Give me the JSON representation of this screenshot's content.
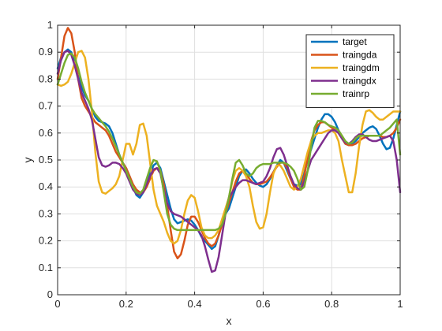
{
  "chart_data": {
    "type": "line",
    "title": "",
    "xlabel": "x",
    "ylabel": "y",
    "xlim": [
      0,
      1
    ],
    "ylim": [
      0,
      1
    ],
    "grid": true,
    "legend_position": "top-right",
    "xticks": [
      0,
      0.2,
      0.4,
      0.6,
      0.8,
      1
    ],
    "xtick_labels": [
      "0",
      "0.2",
      "0.4",
      "0.6",
      "0.8",
      "1"
    ],
    "yticks": [
      0,
      0.1,
      0.2,
      0.3,
      0.4,
      0.5,
      0.6,
      0.7,
      0.8,
      0.9,
      1
    ],
    "ytick_labels": [
      "0",
      "0.1",
      "0.2",
      "0.3",
      "0.4",
      "0.5",
      "0.6",
      "0.7",
      "0.8",
      "0.9",
      "1"
    ],
    "series": [
      {
        "name": "target",
        "color": "#0072BD",
        "x": [
          0,
          0.01,
          0.02,
          0.03,
          0.04,
          0.05,
          0.06,
          0.07,
          0.08,
          0.09,
          0.1,
          0.11,
          0.12,
          0.13,
          0.14,
          0.15,
          0.16,
          0.17,
          0.18,
          0.19,
          0.2,
          0.21,
          0.22,
          0.23,
          0.24,
          0.25,
          0.26,
          0.27,
          0.28,
          0.29,
          0.3,
          0.31,
          0.32,
          0.33,
          0.34,
          0.35,
          0.36,
          0.37,
          0.38,
          0.39,
          0.4,
          0.41,
          0.42,
          0.43,
          0.44,
          0.45,
          0.46,
          0.47,
          0.48,
          0.49,
          0.5,
          0.51,
          0.52,
          0.53,
          0.54,
          0.55,
          0.56,
          0.57,
          0.58,
          0.59,
          0.6,
          0.61,
          0.62,
          0.63,
          0.64,
          0.65,
          0.66,
          0.67,
          0.68,
          0.69,
          0.7,
          0.71,
          0.72,
          0.73,
          0.74,
          0.75,
          0.76,
          0.77,
          0.78,
          0.79,
          0.8,
          0.81,
          0.82,
          0.83,
          0.84,
          0.85,
          0.86,
          0.87,
          0.88,
          0.89,
          0.9,
          0.91,
          0.92,
          0.93,
          0.94,
          0.95,
          0.96,
          0.97,
          0.98,
          0.99,
          1.0
        ],
        "y": [
          0.84,
          0.88,
          0.9,
          0.91,
          0.9,
          0.86,
          0.81,
          0.77,
          0.74,
          0.72,
          0.69,
          0.66,
          0.645,
          0.64,
          0.635,
          0.625,
          0.6,
          0.56,
          0.52,
          0.49,
          0.47,
          0.44,
          0.4,
          0.37,
          0.36,
          0.38,
          0.41,
          0.45,
          0.48,
          0.49,
          0.47,
          0.42,
          0.37,
          0.32,
          0.28,
          0.265,
          0.27,
          0.275,
          0.28,
          0.275,
          0.26,
          0.24,
          0.215,
          0.2,
          0.185,
          0.17,
          0.18,
          0.22,
          0.27,
          0.3,
          0.32,
          0.36,
          0.4,
          0.44,
          0.46,
          0.465,
          0.45,
          0.43,
          0.415,
          0.405,
          0.4,
          0.41,
          0.43,
          0.455,
          0.48,
          0.5,
          0.49,
          0.46,
          0.43,
          0.41,
          0.405,
          0.41,
          0.45,
          0.5,
          0.54,
          0.58,
          0.62,
          0.65,
          0.67,
          0.67,
          0.66,
          0.64,
          0.61,
          0.58,
          0.56,
          0.555,
          0.56,
          0.57,
          0.585,
          0.6,
          0.61,
          0.62,
          0.625,
          0.615,
          0.59,
          0.56,
          0.54,
          0.545,
          0.58,
          0.63,
          0.68
        ]
      },
      {
        "name": "traingda",
        "color": "#D95319",
        "x": [
          0,
          0.01,
          0.02,
          0.03,
          0.04,
          0.05,
          0.06,
          0.07,
          0.08,
          0.09,
          0.1,
          0.11,
          0.12,
          0.13,
          0.14,
          0.15,
          0.16,
          0.17,
          0.18,
          0.19,
          0.2,
          0.21,
          0.22,
          0.23,
          0.24,
          0.25,
          0.26,
          0.27,
          0.28,
          0.29,
          0.3,
          0.31,
          0.32,
          0.33,
          0.34,
          0.35,
          0.36,
          0.37,
          0.38,
          0.39,
          0.4,
          0.41,
          0.42,
          0.43,
          0.44,
          0.45,
          0.46,
          0.47,
          0.48,
          0.49,
          0.5,
          0.51,
          0.52,
          0.53,
          0.54,
          0.55,
          0.56,
          0.57,
          0.58,
          0.59,
          0.6,
          0.61,
          0.62,
          0.63,
          0.64,
          0.65,
          0.66,
          0.67,
          0.68,
          0.69,
          0.7,
          0.71,
          0.72,
          0.73,
          0.74,
          0.75,
          0.76,
          0.77,
          0.78,
          0.79,
          0.8,
          0.81,
          0.82,
          0.83,
          0.84,
          0.85,
          0.86,
          0.87,
          0.88,
          0.89,
          0.9,
          0.91,
          0.92,
          0.93,
          0.94,
          0.95,
          0.96,
          0.97,
          0.98,
          0.99,
          1.0
        ],
        "y": [
          0.8,
          0.88,
          0.96,
          0.99,
          0.97,
          0.9,
          0.8,
          0.73,
          0.7,
          0.68,
          0.66,
          0.64,
          0.63,
          0.62,
          0.61,
          0.59,
          0.56,
          0.53,
          0.51,
          0.49,
          0.47,
          0.44,
          0.41,
          0.39,
          0.38,
          0.38,
          0.4,
          0.43,
          0.46,
          0.47,
          0.46,
          0.41,
          0.33,
          0.24,
          0.16,
          0.135,
          0.15,
          0.2,
          0.26,
          0.29,
          0.29,
          0.27,
          0.24,
          0.21,
          0.19,
          0.18,
          0.19,
          0.22,
          0.26,
          0.3,
          0.34,
          0.38,
          0.42,
          0.45,
          0.46,
          0.45,
          0.43,
          0.415,
          0.41,
          0.41,
          0.415,
          0.42,
          0.435,
          0.455,
          0.475,
          0.49,
          0.49,
          0.47,
          0.43,
          0.4,
          0.39,
          0.39,
          0.44,
          0.51,
          0.57,
          0.61,
          0.63,
          0.64,
          0.64,
          0.63,
          0.62,
          0.61,
          0.6,
          0.58,
          0.56,
          0.555,
          0.555,
          0.56,
          0.57,
          0.58,
          0.585,
          0.59,
          0.59,
          0.59,
          0.59,
          0.585,
          0.585,
          0.59,
          0.6,
          0.62,
          0.65
        ]
      },
      {
        "name": "traingdm",
        "color": "#EDB120",
        "x": [
          0,
          0.01,
          0.02,
          0.03,
          0.04,
          0.05,
          0.06,
          0.07,
          0.08,
          0.09,
          0.1,
          0.11,
          0.12,
          0.13,
          0.14,
          0.15,
          0.16,
          0.17,
          0.18,
          0.19,
          0.2,
          0.21,
          0.22,
          0.23,
          0.24,
          0.25,
          0.26,
          0.27,
          0.28,
          0.29,
          0.3,
          0.31,
          0.32,
          0.33,
          0.34,
          0.35,
          0.36,
          0.37,
          0.38,
          0.39,
          0.4,
          0.41,
          0.42,
          0.43,
          0.44,
          0.45,
          0.46,
          0.47,
          0.48,
          0.49,
          0.5,
          0.51,
          0.52,
          0.53,
          0.54,
          0.55,
          0.56,
          0.57,
          0.58,
          0.59,
          0.6,
          0.61,
          0.62,
          0.63,
          0.64,
          0.65,
          0.66,
          0.67,
          0.68,
          0.69,
          0.7,
          0.71,
          0.72,
          0.73,
          0.74,
          0.75,
          0.76,
          0.77,
          0.78,
          0.79,
          0.8,
          0.81,
          0.82,
          0.83,
          0.84,
          0.85,
          0.86,
          0.87,
          0.88,
          0.89,
          0.9,
          0.91,
          0.92,
          0.93,
          0.94,
          0.95,
          0.96,
          0.97,
          0.98,
          0.99,
          1.0
        ],
        "y": [
          0.78,
          0.775,
          0.78,
          0.79,
          0.82,
          0.86,
          0.9,
          0.905,
          0.88,
          0.8,
          0.68,
          0.53,
          0.42,
          0.38,
          0.375,
          0.385,
          0.395,
          0.41,
          0.44,
          0.5,
          0.56,
          0.56,
          0.52,
          0.56,
          0.63,
          0.635,
          0.59,
          0.49,
          0.39,
          0.33,
          0.3,
          0.27,
          0.23,
          0.2,
          0.19,
          0.2,
          0.24,
          0.3,
          0.35,
          0.37,
          0.36,
          0.31,
          0.25,
          0.22,
          0.21,
          0.21,
          0.22,
          0.24,
          0.28,
          0.32,
          0.36,
          0.42,
          0.46,
          0.47,
          0.46,
          0.44,
          0.4,
          0.33,
          0.27,
          0.245,
          0.25,
          0.3,
          0.38,
          0.45,
          0.48,
          0.48,
          0.46,
          0.43,
          0.4,
          0.39,
          0.4,
          0.43,
          0.48,
          0.53,
          0.57,
          0.59,
          0.6,
          0.6,
          0.605,
          0.61,
          0.61,
          0.6,
          0.57,
          0.5,
          0.44,
          0.38,
          0.38,
          0.45,
          0.55,
          0.63,
          0.68,
          0.685,
          0.675,
          0.66,
          0.65,
          0.65,
          0.66,
          0.67,
          0.68,
          0.68,
          0.68
        ]
      },
      {
        "name": "traingdx",
        "color": "#7E2F8E",
        "x": [
          0,
          0.01,
          0.02,
          0.03,
          0.04,
          0.05,
          0.06,
          0.07,
          0.08,
          0.09,
          0.1,
          0.11,
          0.12,
          0.13,
          0.14,
          0.15,
          0.16,
          0.17,
          0.18,
          0.19,
          0.2,
          0.21,
          0.22,
          0.23,
          0.24,
          0.25,
          0.26,
          0.27,
          0.28,
          0.29,
          0.3,
          0.31,
          0.32,
          0.33,
          0.34,
          0.35,
          0.36,
          0.37,
          0.38,
          0.39,
          0.4,
          0.41,
          0.42,
          0.43,
          0.44,
          0.45,
          0.46,
          0.47,
          0.48,
          0.49,
          0.5,
          0.51,
          0.52,
          0.53,
          0.54,
          0.55,
          0.56,
          0.57,
          0.58,
          0.59,
          0.6,
          0.61,
          0.62,
          0.63,
          0.64,
          0.65,
          0.66,
          0.67,
          0.68,
          0.69,
          0.7,
          0.71,
          0.72,
          0.73,
          0.74,
          0.75,
          0.76,
          0.77,
          0.78,
          0.79,
          0.8,
          0.81,
          0.82,
          0.83,
          0.84,
          0.85,
          0.86,
          0.87,
          0.88,
          0.89,
          0.9,
          0.91,
          0.92,
          0.93,
          0.94,
          0.95,
          0.96,
          0.97,
          0.98,
          0.99,
          1.0
        ],
        "y": [
          0.82,
          0.87,
          0.9,
          0.905,
          0.89,
          0.85,
          0.8,
          0.75,
          0.72,
          0.69,
          0.65,
          0.58,
          0.51,
          0.48,
          0.475,
          0.48,
          0.49,
          0.49,
          0.485,
          0.47,
          0.45,
          0.42,
          0.39,
          0.375,
          0.37,
          0.38,
          0.41,
          0.44,
          0.465,
          0.47,
          0.45,
          0.39,
          0.34,
          0.31,
          0.3,
          0.295,
          0.29,
          0.28,
          0.27,
          0.26,
          0.25,
          0.24,
          0.22,
          0.18,
          0.13,
          0.085,
          0.09,
          0.14,
          0.22,
          0.3,
          0.36,
          0.38,
          0.4,
          0.415,
          0.425,
          0.425,
          0.42,
          0.415,
          0.41,
          0.415,
          0.42,
          0.44,
          0.47,
          0.51,
          0.54,
          0.545,
          0.52,
          0.48,
          0.44,
          0.41,
          0.395,
          0.39,
          0.42,
          0.46,
          0.5,
          0.52,
          0.54,
          0.56,
          0.58,
          0.6,
          0.61,
          0.61,
          0.6,
          0.58,
          0.565,
          0.56,
          0.57,
          0.585,
          0.595,
          0.595,
          0.585,
          0.575,
          0.57,
          0.57,
          0.575,
          0.58,
          0.585,
          0.59,
          0.57,
          0.5,
          0.38
        ]
      },
      {
        "name": "trainrp",
        "color": "#77AC30",
        "x": [
          0,
          0.01,
          0.02,
          0.03,
          0.04,
          0.05,
          0.06,
          0.07,
          0.08,
          0.09,
          0.1,
          0.11,
          0.12,
          0.13,
          0.14,
          0.15,
          0.16,
          0.17,
          0.18,
          0.19,
          0.2,
          0.21,
          0.22,
          0.23,
          0.24,
          0.25,
          0.26,
          0.27,
          0.28,
          0.29,
          0.3,
          0.31,
          0.32,
          0.33,
          0.34,
          0.35,
          0.36,
          0.37,
          0.38,
          0.39,
          0.4,
          0.41,
          0.42,
          0.43,
          0.44,
          0.45,
          0.46,
          0.47,
          0.48,
          0.49,
          0.5,
          0.51,
          0.52,
          0.53,
          0.54,
          0.55,
          0.56,
          0.57,
          0.58,
          0.59,
          0.6,
          0.61,
          0.62,
          0.63,
          0.64,
          0.65,
          0.66,
          0.67,
          0.68,
          0.69,
          0.7,
          0.71,
          0.72,
          0.73,
          0.74,
          0.75,
          0.76,
          0.77,
          0.78,
          0.79,
          0.8,
          0.81,
          0.82,
          0.83,
          0.84,
          0.85,
          0.86,
          0.87,
          0.88,
          0.89,
          0.9,
          0.91,
          0.92,
          0.93,
          0.94,
          0.95,
          0.96,
          0.97,
          0.98,
          0.99,
          1.0
        ],
        "y": [
          0.78,
          0.82,
          0.86,
          0.89,
          0.895,
          0.88,
          0.84,
          0.79,
          0.75,
          0.72,
          0.69,
          0.67,
          0.655,
          0.64,
          0.625,
          0.605,
          0.58,
          0.55,
          0.52,
          0.49,
          0.46,
          0.43,
          0.4,
          0.38,
          0.375,
          0.39,
          0.43,
          0.47,
          0.5,
          0.495,
          0.46,
          0.38,
          0.3,
          0.26,
          0.245,
          0.24,
          0.24,
          0.24,
          0.24,
          0.24,
          0.24,
          0.24,
          0.24,
          0.24,
          0.24,
          0.24,
          0.24,
          0.245,
          0.26,
          0.3,
          0.36,
          0.43,
          0.49,
          0.5,
          0.48,
          0.45,
          0.44,
          0.45,
          0.47,
          0.48,
          0.485,
          0.485,
          0.485,
          0.49,
          0.49,
          0.49,
          0.49,
          0.485,
          0.475,
          0.46,
          0.43,
          0.39,
          0.4,
          0.46,
          0.55,
          0.62,
          0.645,
          0.645,
          0.64,
          0.63,
          0.625,
          0.62,
          0.61,
          0.59,
          0.57,
          0.56,
          0.565,
          0.58,
          0.59,
          0.59,
          0.59,
          0.59,
          0.59,
          0.59,
          0.59,
          0.6,
          0.61,
          0.62,
          0.635,
          0.65,
          0.52
        ]
      }
    ]
  }
}
